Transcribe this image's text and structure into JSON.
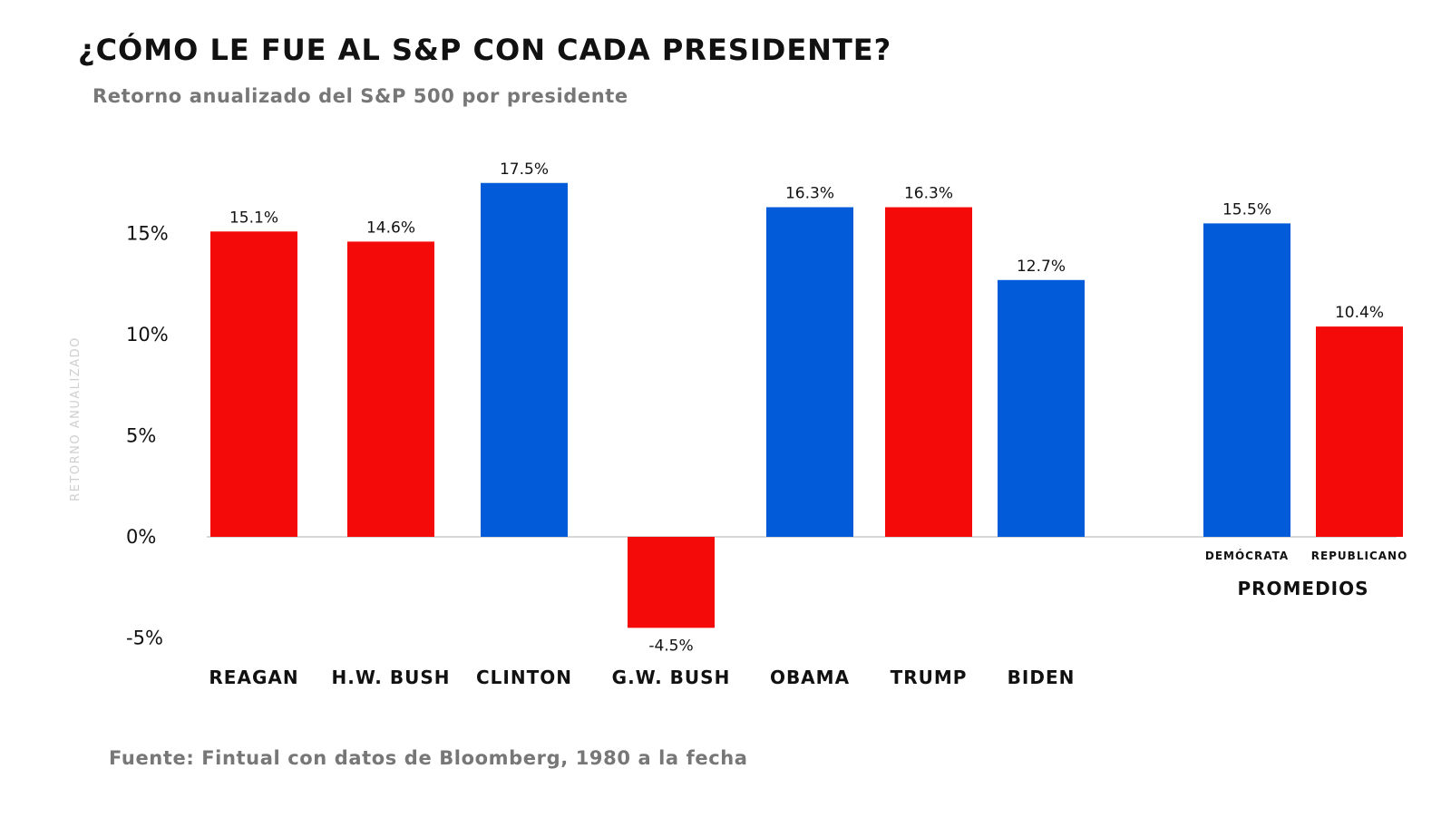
{
  "chart_data": {
    "type": "bar",
    "title": "¿CÓMO LE FUE AL S&P CON CADA PRESIDENTE?",
    "subtitle": "Retorno anualizado del S&P 500 por presidente",
    "ylabel": "RETORNO ANUALIZADO",
    "ylim": [
      -5,
      17.5
    ],
    "yticks": [
      15,
      10,
      5,
      0,
      -5
    ],
    "ytick_labels": [
      "15%",
      "10%",
      "5%",
      "0%",
      "-5%"
    ],
    "grid": false,
    "source": "Fuente: Fintual con datos de Bloomberg, 1980 a la fecha",
    "colors": {
      "republicano": "#f50a0a",
      "democrata": "#025bd8",
      "zero_line": "#cccccc"
    },
    "presidents": {
      "categories": [
        "REAGAN",
        "H.W. BUSH",
        "CLINTON",
        "G.W. BUSH",
        "OBAMA",
        "TRUMP",
        "BIDEN"
      ],
      "values": [
        15.1,
        14.6,
        17.5,
        -4.5,
        16.3,
        16.3,
        12.7
      ],
      "value_labels": [
        "15.1%",
        "14.6%",
        "17.5%",
        "-4.5%",
        "16.3%",
        "16.3%",
        "12.7%"
      ],
      "party": [
        "republicano",
        "republicano",
        "democrata",
        "republicano",
        "democrata",
        "republicano",
        "democrata"
      ]
    },
    "averages": {
      "group_label": "PROMEDIOS",
      "categories": [
        "DEMÓCRATA",
        "REPUBLICANO"
      ],
      "values": [
        15.5,
        10.4
      ],
      "value_labels": [
        "15.5%",
        "10.4%"
      ],
      "party": [
        "democrata",
        "republicano"
      ]
    }
  }
}
